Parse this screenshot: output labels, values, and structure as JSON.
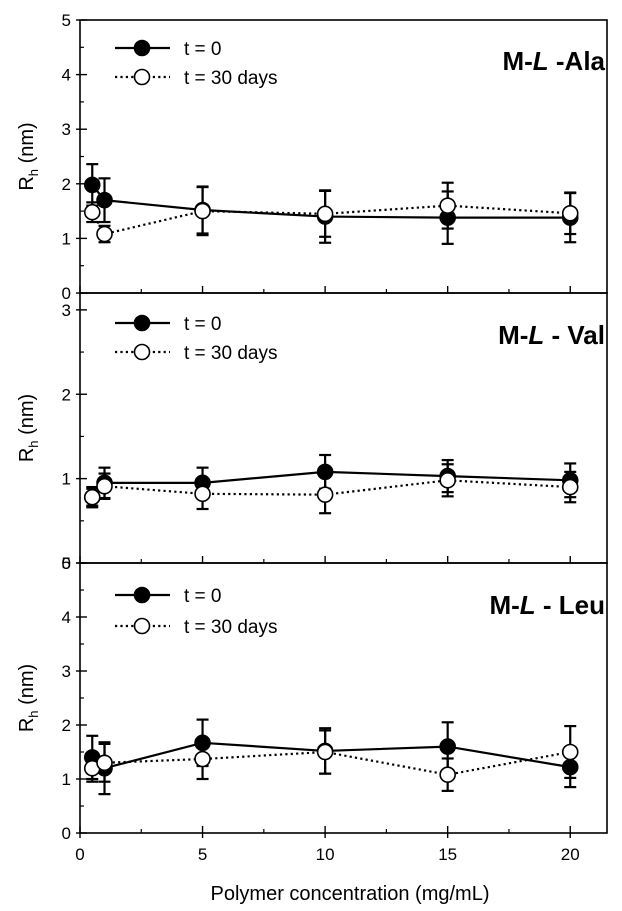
{
  "chart_data": [
    {
      "type": "line",
      "title": "M-L-Ala",
      "title_parts": [
        "M-",
        "L",
        " -Ala"
      ],
      "ylabel": "R",
      "ylabel_sub": "h",
      "ylabel_unit": "(nm)",
      "xlabel": "Polymer concentration (mg/mL)",
      "xlim": [
        0,
        21.5
      ],
      "ylim": [
        0,
        5
      ],
      "yticks": [
        0,
        1,
        2,
        3,
        4,
        5
      ],
      "legend_position": "top-left",
      "series": [
        {
          "name": "t = 0",
          "marker": "filled-circle",
          "line": "solid",
          "x": [
            0.5,
            1,
            5,
            10,
            15,
            20
          ],
          "y": [
            1.98,
            1.7,
            1.52,
            1.4,
            1.38,
            1.38
          ],
          "err": [
            0.38,
            0.4,
            0.43,
            0.48,
            0.48,
            0.45
          ]
        },
        {
          "name": "t = 30 days",
          "marker": "open-circle",
          "line": "dotted",
          "x": [
            0.5,
            1,
            5,
            10,
            15,
            20
          ],
          "y": [
            1.48,
            1.08,
            1.5,
            1.45,
            1.6,
            1.46
          ],
          "err": [
            0.18,
            0.15,
            0.44,
            0.42,
            0.42,
            0.38
          ]
        }
      ]
    },
    {
      "type": "line",
      "title": "M-L - Val",
      "title_parts": [
        "M-",
        "L",
        " - Val"
      ],
      "ylabel": "R",
      "ylabel_sub": "h",
      "ylabel_unit": "(nm)",
      "xlim": [
        0,
        21.5
      ],
      "ylim": [
        0,
        3.2
      ],
      "yticks": [
        0,
        1,
        2,
        3
      ],
      "legend_position": "top-left",
      "series": [
        {
          "name": "t = 0",
          "marker": "filled-circle",
          "line": "solid",
          "x": [
            0.5,
            1,
            5,
            10,
            15,
            20
          ],
          "y": [
            0.78,
            0.95,
            0.95,
            1.08,
            1.03,
            0.98
          ],
          "err": [
            0.12,
            0.18,
            0.18,
            0.2,
            0.19,
            0.2
          ]
        },
        {
          "name": "t = 30 days",
          "marker": "open-circle",
          "line": "dotted",
          "x": [
            0.5,
            1,
            5,
            10,
            15,
            20
          ],
          "y": [
            0.78,
            0.91,
            0.82,
            0.81,
            0.98,
            0.9
          ],
          "err": [
            0.1,
            0.15,
            0.18,
            0.22,
            0.19,
            0.18
          ]
        }
      ]
    },
    {
      "type": "line",
      "title": "M-L - Leu",
      "title_parts": [
        "M-",
        "L",
        " - Leu"
      ],
      "ylabel": "R",
      "ylabel_sub": "h",
      "ylabel_unit": "(nm)",
      "xlabel": "Polymer concentration (mg/mL)",
      "xlim": [
        0,
        21.5
      ],
      "ylim": [
        0,
        5
      ],
      "yticks": [
        0,
        1,
        2,
        3,
        4,
        5
      ],
      "xticks": [
        0,
        5,
        10,
        15,
        20
      ],
      "legend_position": "top-left",
      "series": [
        {
          "name": "t = 0",
          "marker": "filled-circle",
          "line": "solid",
          "x": [
            0.5,
            1,
            5,
            10,
            15,
            20
          ],
          "y": [
            1.4,
            1.2,
            1.67,
            1.52,
            1.6,
            1.22
          ],
          "err": [
            0.4,
            0.48,
            0.43,
            0.42,
            0.45,
            0.37
          ]
        },
        {
          "name": "t = 30 days",
          "marker": "open-circle",
          "line": "dotted",
          "x": [
            0.5,
            1,
            5,
            10,
            15,
            20
          ],
          "y": [
            1.2,
            1.3,
            1.37,
            1.5,
            1.08,
            1.5
          ],
          "err": [
            0.25,
            0.35,
            0.37,
            0.4,
            0.3,
            0.48
          ]
        }
      ]
    }
  ]
}
